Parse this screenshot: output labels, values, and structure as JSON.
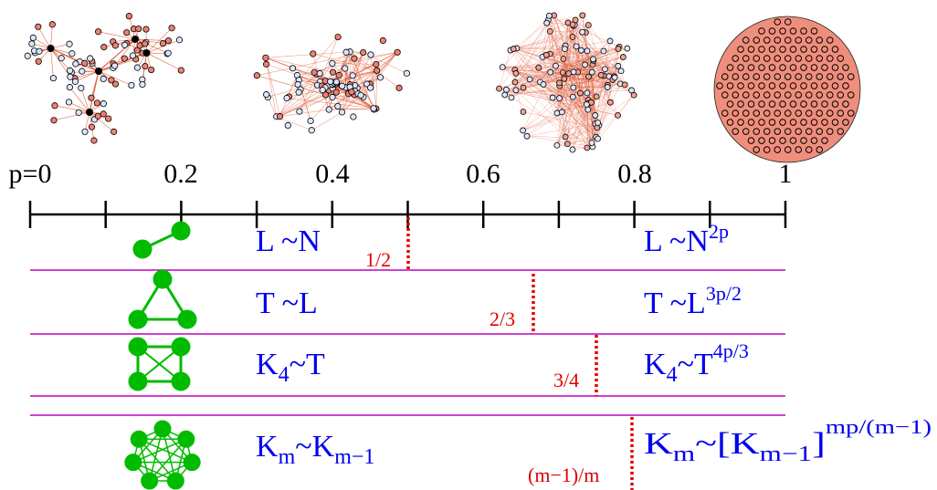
{
  "axis": {
    "ticks": [
      "p=0",
      "0.2",
      "0.4",
      "0.6",
      "0.8",
      "1"
    ],
    "tick_values": [
      0,
      0.1,
      0.2,
      0.3,
      0.4,
      0.5,
      0.6,
      0.7,
      0.8,
      0.9,
      1.0
    ]
  },
  "network_snapshots": [
    {
      "p": 0.1,
      "style": "tree"
    },
    {
      "p": 0.4,
      "style": "clustered"
    },
    {
      "p": 0.7,
      "style": "dense"
    },
    {
      "p": 0.9,
      "style": "complete"
    }
  ],
  "rows": [
    {
      "motif": "edge",
      "left": {
        "base": "L ~N"
      },
      "threshold": {
        "label": "1/2",
        "p": 0.5
      },
      "right": {
        "base": "L ~N",
        "sup": "2p"
      }
    },
    {
      "motif": "triangle",
      "left": {
        "base": "T ~L"
      },
      "threshold": {
        "label": "2/3",
        "p": 0.667
      },
      "right": {
        "base": "T ~L",
        "sup": "3p/2"
      }
    },
    {
      "motif": "k4",
      "left": {
        "base": "K",
        "sub": "4",
        "rest": "~T"
      },
      "threshold": {
        "label": "3/4",
        "p": 0.75
      },
      "right": {
        "base": "K",
        "sub": "4",
        "rest": "~T",
        "sup": "4p/3"
      }
    },
    {
      "motif": "km",
      "left": {
        "base": "K",
        "sub": "m",
        "rest": "~K",
        "sub2": "m−1"
      },
      "threshold": {
        "label": "(m−1)/m",
        "p": 0.8
      },
      "right": {
        "base": "K",
        "sub": "m",
        "rest": "~[K",
        "sub2": "m−1",
        "rest2": "]",
        "sup": "mp/(m−1)"
      }
    }
  ],
  "colors": {
    "law_text": "#0000ee",
    "threshold": "#e00000",
    "separator": "#c000c0",
    "motif_green": "#00bb00",
    "node_fill": "#f08070",
    "edge": "#e06040"
  }
}
